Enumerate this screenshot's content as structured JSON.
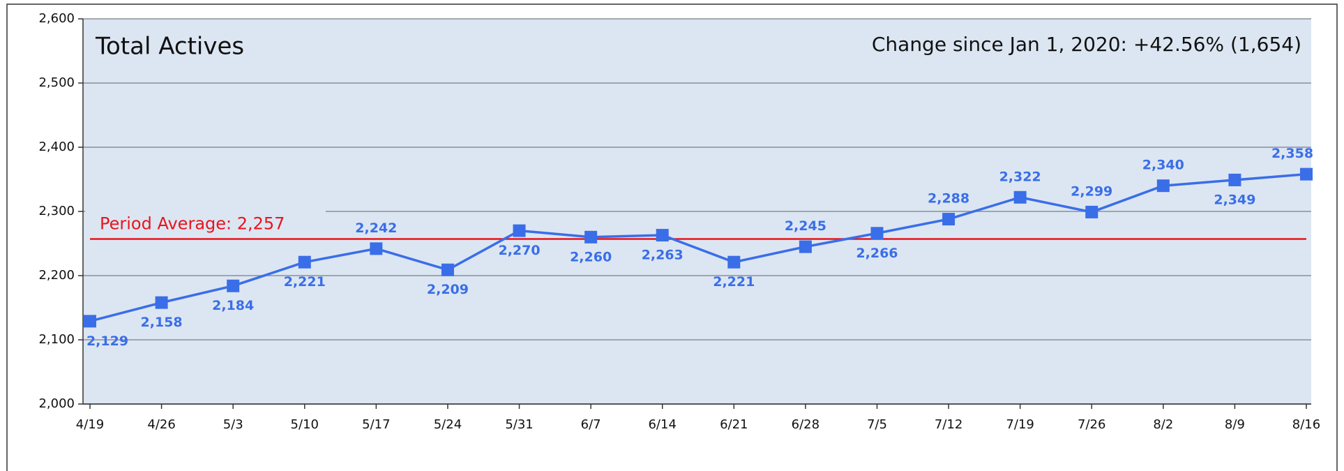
{
  "chart_data": {
    "type": "line",
    "title": "Total Actives",
    "subtitle": "Change since Jan 1, 2020: +42.56% (1,654)",
    "categories": [
      "4/19",
      "4/26",
      "5/3",
      "5/10",
      "5/17",
      "5/24",
      "5/31",
      "6/7",
      "6/14",
      "6/21",
      "6/28",
      "7/5",
      "7/12",
      "7/19",
      "7/26",
      "8/2",
      "8/9",
      "8/16"
    ],
    "series": [
      {
        "name": "Total Actives",
        "color": "#3a6ee8",
        "values": [
          2129,
          2158,
          2184,
          2221,
          2242,
          2209,
          2270,
          2260,
          2263,
          2221,
          2245,
          2266,
          2288,
          2322,
          2299,
          2340,
          2349,
          2358
        ],
        "value_labels": [
          "2,129",
          "2,158",
          "2,184",
          "2,221",
          "2,242",
          "2,209",
          "2,270",
          "2,260",
          "2,263",
          "2,221",
          "2,245",
          "2,266",
          "2,288",
          "2,322",
          "2,299",
          "2,340",
          "2,349",
          "2,358"
        ]
      }
    ],
    "average": 2257,
    "average_label": "Period Average: 2,257",
    "average_color": "#e8141c",
    "ylim": [
      2000,
      2600
    ],
    "yticks": [
      {
        "value": 2000,
        "label": "2,000"
      },
      {
        "value": 2100,
        "label": "2,100"
      },
      {
        "value": 2200,
        "label": "2,200"
      },
      {
        "value": 2300,
        "label": "2,300"
      },
      {
        "value": 2400,
        "label": "2,400"
      },
      {
        "value": 2500,
        "label": "2,500"
      },
      {
        "value": 2600,
        "label": "2,600"
      }
    ],
    "grid": true,
    "background": "#dce6f2"
  }
}
